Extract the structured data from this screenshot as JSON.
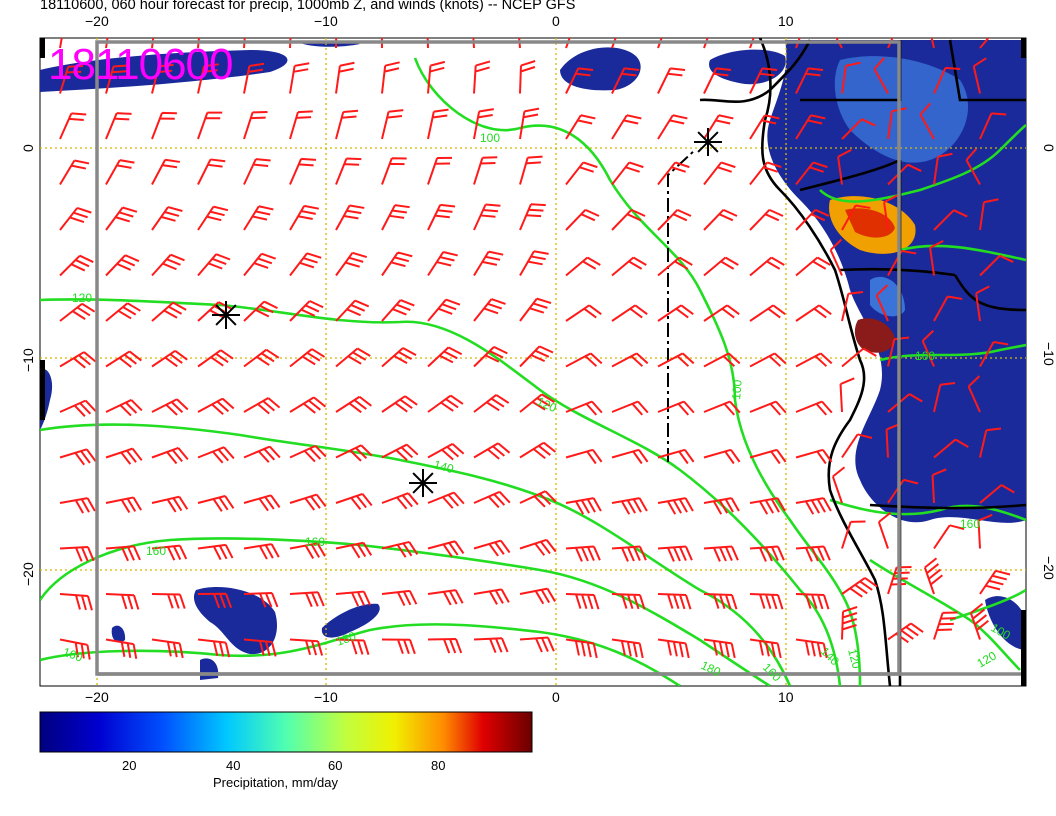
{
  "header": {
    "title": "18110600, 060 hour forecast for precip, 1000mb Z, and winds (knots) -- NCEP GFS",
    "stamp": "18110600"
  },
  "map": {
    "lon_ticks": [
      -20,
      -10,
      0,
      10
    ],
    "lat_ticks": [
      0,
      -10,
      -20
    ],
    "lon_tick_labels": [
      "−20",
      "−10",
      "0",
      "10"
    ],
    "lat_tick_labels": [
      "0",
      "−10",
      "−20"
    ],
    "colors": {
      "precip_low": "#1a2a9a",
      "precip_mid": "#3a74d8",
      "precip_high": "#8b1a1a",
      "contour": "#22dd22",
      "barb": "#ff1a1a",
      "grid": "#d6b800",
      "border": "#888888",
      "coast": "#000000",
      "stamp": "#ff00ff"
    },
    "contour_labels": [
      "100",
      "120",
      "120",
      "140",
      "140",
      "160",
      "160",
      "160",
      "160",
      "180",
      "180",
      "100",
      "100",
      "120",
      "120",
      "160",
      "160"
    ],
    "feature_markers": [
      "low-center-star",
      "high-center-star",
      "high-center-star"
    ]
  },
  "colorbar": {
    "ticks": [
      "20",
      "40",
      "60",
      "80"
    ],
    "label": "Precipitation, mm/day",
    "colors": [
      "#00007f",
      "#0000d0",
      "#0040ff",
      "#0090ff",
      "#00d8ff",
      "#40ffb8",
      "#a0ff58",
      "#f0f000",
      "#ff9000",
      "#ff2000",
      "#b00000",
      "#6a0000"
    ]
  }
}
